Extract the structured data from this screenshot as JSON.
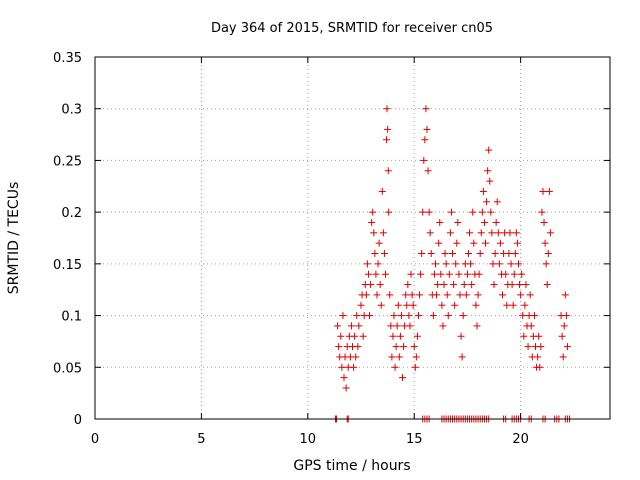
{
  "chart_data": {
    "type": "scatter",
    "title": "Day 364 of 2015, SRMTID for receiver cn05",
    "xlabel": "GPS time / hours",
    "ylabel": "SRMTID / TECUs",
    "xlim": [
      0,
      24.2
    ],
    "ylim": [
      0,
      0.35
    ],
    "xticks": [
      0,
      5,
      10,
      15,
      20
    ],
    "yticks": [
      0,
      0.05,
      0.1,
      0.15,
      0.2,
      0.25,
      0.3,
      0.35
    ],
    "grid": true,
    "marker": "+",
    "marker_color": "#e00000",
    "series": [
      {
        "name": "SRMTID",
        "points": [
          [
            11.4,
            0.09
          ],
          [
            11.45,
            0.07
          ],
          [
            11.5,
            0.06
          ],
          [
            11.55,
            0.08
          ],
          [
            11.6,
            0.05
          ],
          [
            11.65,
            0.1
          ],
          [
            11.7,
            0.04
          ],
          [
            11.75,
            0.06
          ],
          [
            11.8,
            0.03
          ],
          [
            11.85,
            0.07
          ],
          [
            11.9,
            0.05
          ],
          [
            11.95,
            0.08
          ],
          [
            12.0,
            0.06
          ],
          [
            12.05,
            0.09
          ],
          [
            12.1,
            0.07
          ],
          [
            12.15,
            0.05
          ],
          [
            12.2,
            0.08
          ],
          [
            12.25,
            0.06
          ],
          [
            12.3,
            0.1
          ],
          [
            12.35,
            0.07
          ],
          [
            12.4,
            0.09
          ],
          [
            12.5,
            0.11
          ],
          [
            12.55,
            0.12
          ],
          [
            12.6,
            0.08
          ],
          [
            12.65,
            0.1
          ],
          [
            12.7,
            0.13
          ],
          [
            12.75,
            0.12
          ],
          [
            12.8,
            0.15
          ],
          [
            12.85,
            0.14
          ],
          [
            12.9,
            0.1
          ],
          [
            12.95,
            0.13
          ],
          [
            13.0,
            0.19
          ],
          [
            13.05,
            0.2
          ],
          [
            13.1,
            0.18
          ],
          [
            13.15,
            0.16
          ],
          [
            13.2,
            0.14
          ],
          [
            13.25,
            0.12
          ],
          [
            13.3,
            0.15
          ],
          [
            13.35,
            0.17
          ],
          [
            13.4,
            0.13
          ],
          [
            13.45,
            0.11
          ],
          [
            13.5,
            0.22
          ],
          [
            13.55,
            0.18
          ],
          [
            13.6,
            0.16
          ],
          [
            13.65,
            0.14
          ],
          [
            13.7,
            0.27
          ],
          [
            13.72,
            0.3
          ],
          [
            13.75,
            0.28
          ],
          [
            13.78,
            0.24
          ],
          [
            13.8,
            0.2
          ],
          [
            13.85,
            0.12
          ],
          [
            13.9,
            0.09
          ],
          [
            13.95,
            0.06
          ],
          [
            14.0,
            0.08
          ],
          [
            14.05,
            0.1
          ],
          [
            14.1,
            0.05
          ],
          [
            14.15,
            0.07
          ],
          [
            14.2,
            0.09
          ],
          [
            14.25,
            0.11
          ],
          [
            14.3,
            0.06
          ],
          [
            14.35,
            0.08
          ],
          [
            14.4,
            0.1
          ],
          [
            14.45,
            0.04
          ],
          [
            14.5,
            0.07
          ],
          [
            14.55,
            0.09
          ],
          [
            14.6,
            0.12
          ],
          [
            14.65,
            0.11
          ],
          [
            14.7,
            0.13
          ],
          [
            14.75,
            0.1
          ],
          [
            14.8,
            0.09
          ],
          [
            14.85,
            0.14
          ],
          [
            14.9,
            0.12
          ],
          [
            14.95,
            0.11
          ],
          [
            15.0,
            0.07
          ],
          [
            15.05,
            0.05
          ],
          [
            15.1,
            0.06
          ],
          [
            15.15,
            0.08
          ],
          [
            15.2,
            0.1
          ],
          [
            15.25,
            0.12
          ],
          [
            15.3,
            0.14
          ],
          [
            15.35,
            0.16
          ],
          [
            15.4,
            0.2
          ],
          [
            15.45,
            0.25
          ],
          [
            15.5,
            0.27
          ],
          [
            15.55,
            0.3
          ],
          [
            15.6,
            0.28
          ],
          [
            15.65,
            0.24
          ],
          [
            15.7,
            0.2
          ],
          [
            15.75,
            0.18
          ],
          [
            15.8,
            0.16
          ],
          [
            15.85,
            0.12
          ],
          [
            15.9,
            0.1
          ],
          [
            15.95,
            0.14
          ],
          [
            16.0,
            0.15
          ],
          [
            16.05,
            0.12
          ],
          [
            16.1,
            0.13
          ],
          [
            16.15,
            0.17
          ],
          [
            16.2,
            0.19
          ],
          [
            16.25,
            0.14
          ],
          [
            16.3,
            0.11
          ],
          [
            16.35,
            0.09
          ],
          [
            16.4,
            0.13
          ],
          [
            16.45,
            0.16
          ],
          [
            16.5,
            0.15
          ],
          [
            16.55,
            0.12
          ],
          [
            16.6,
            0.1
          ],
          [
            16.65,
            0.14
          ],
          [
            16.7,
            0.18
          ],
          [
            16.75,
            0.2
          ],
          [
            16.8,
            0.16
          ],
          [
            16.85,
            0.13
          ],
          [
            16.9,
            0.11
          ],
          [
            16.95,
            0.15
          ],
          [
            17.0,
            0.17
          ],
          [
            17.05,
            0.19
          ],
          [
            17.1,
            0.14
          ],
          [
            17.15,
            0.12
          ],
          [
            17.2,
            0.08
          ],
          [
            17.25,
            0.06
          ],
          [
            17.3,
            0.1
          ],
          [
            17.35,
            0.13
          ],
          [
            17.4,
            0.15
          ],
          [
            17.45,
            0.12
          ],
          [
            17.5,
            0.14
          ],
          [
            17.55,
            0.16
          ],
          [
            17.6,
            0.18
          ],
          [
            17.65,
            0.15
          ],
          [
            17.7,
            0.13
          ],
          [
            17.75,
            0.2
          ],
          [
            17.8,
            0.17
          ],
          [
            17.85,
            0.14
          ],
          [
            17.9,
            0.11
          ],
          [
            17.95,
            0.09
          ],
          [
            18.0,
            0.12
          ],
          [
            18.05,
            0.14
          ],
          [
            18.1,
            0.16
          ],
          [
            18.15,
            0.18
          ],
          [
            18.2,
            0.2
          ],
          [
            18.25,
            0.22
          ],
          [
            18.3,
            0.19
          ],
          [
            18.35,
            0.17
          ],
          [
            18.4,
            0.21
          ],
          [
            18.45,
            0.24
          ],
          [
            18.5,
            0.26
          ],
          [
            18.55,
            0.23
          ],
          [
            18.6,
            0.2
          ],
          [
            18.65,
            0.18
          ],
          [
            18.7,
            0.15
          ],
          [
            18.75,
            0.13
          ],
          [
            18.8,
            0.16
          ],
          [
            18.85,
            0.19
          ],
          [
            18.9,
            0.21
          ],
          [
            18.95,
            0.18
          ],
          [
            19.0,
            0.15
          ],
          [
            19.05,
            0.17
          ],
          [
            19.1,
            0.14
          ],
          [
            19.15,
            0.12
          ],
          [
            19.2,
            0.16
          ],
          [
            19.25,
            0.18
          ],
          [
            19.3,
            0.14
          ],
          [
            19.35,
            0.11
          ],
          [
            19.4,
            0.13
          ],
          [
            19.45,
            0.16
          ],
          [
            19.5,
            0.18
          ],
          [
            19.55,
            0.15
          ],
          [
            19.6,
            0.13
          ],
          [
            19.65,
            0.11
          ],
          [
            19.7,
            0.14
          ],
          [
            19.75,
            0.16
          ],
          [
            19.8,
            0.18
          ],
          [
            19.85,
            0.17
          ],
          [
            19.9,
            0.15
          ],
          [
            19.95,
            0.13
          ],
          [
            20.0,
            0.12
          ],
          [
            20.05,
            0.14
          ],
          [
            20.1,
            0.1
          ],
          [
            20.15,
            0.08
          ],
          [
            20.2,
            0.11
          ],
          [
            20.25,
            0.13
          ],
          [
            20.3,
            0.09
          ],
          [
            20.35,
            0.07
          ],
          [
            20.4,
            0.1
          ],
          [
            20.45,
            0.12
          ],
          [
            20.5,
            0.09
          ],
          [
            20.55,
            0.06
          ],
          [
            20.6,
            0.08
          ],
          [
            20.65,
            0.1
          ],
          [
            20.7,
            0.07
          ],
          [
            20.75,
            0.05
          ],
          [
            20.8,
            0.06
          ],
          [
            20.85,
            0.08
          ],
          [
            20.9,
            0.05
          ],
          [
            20.95,
            0.07
          ],
          [
            21.0,
            0.2
          ],
          [
            21.05,
            0.22
          ],
          [
            21.1,
            0.19
          ],
          [
            21.15,
            0.17
          ],
          [
            21.2,
            0.15
          ],
          [
            21.25,
            0.13
          ],
          [
            21.3,
            0.16
          ],
          [
            21.35,
            0.22
          ],
          [
            21.4,
            0.18
          ],
          [
            21.9,
            0.1
          ],
          [
            21.95,
            0.08
          ],
          [
            22.0,
            0.06
          ],
          [
            22.05,
            0.09
          ],
          [
            22.1,
            0.12
          ],
          [
            22.15,
            0.1
          ],
          [
            22.2,
            0.07
          ],
          [
            11.3,
            0.0
          ],
          [
            11.35,
            0.0
          ],
          [
            11.85,
            0.0
          ],
          [
            11.9,
            0.0
          ],
          [
            15.4,
            0.0
          ],
          [
            15.5,
            0.0
          ],
          [
            15.6,
            0.0
          ],
          [
            15.7,
            0.0
          ],
          [
            16.3,
            0.0
          ],
          [
            16.4,
            0.0
          ],
          [
            16.5,
            0.0
          ],
          [
            16.6,
            0.0
          ],
          [
            16.7,
            0.0
          ],
          [
            16.8,
            0.0
          ],
          [
            16.9,
            0.0
          ],
          [
            17.0,
            0.0
          ],
          [
            17.1,
            0.0
          ],
          [
            17.2,
            0.0
          ],
          [
            17.3,
            0.0
          ],
          [
            17.4,
            0.0
          ],
          [
            17.5,
            0.0
          ],
          [
            17.6,
            0.0
          ],
          [
            17.7,
            0.0
          ],
          [
            17.8,
            0.0
          ],
          [
            17.9,
            0.0
          ],
          [
            18.0,
            0.0
          ],
          [
            18.1,
            0.0
          ],
          [
            18.2,
            0.0
          ],
          [
            18.3,
            0.0
          ],
          [
            18.4,
            0.0
          ],
          [
            18.5,
            0.0
          ],
          [
            19.2,
            0.0
          ],
          [
            19.3,
            0.0
          ],
          [
            19.6,
            0.0
          ],
          [
            19.7,
            0.0
          ],
          [
            19.8,
            0.0
          ],
          [
            19.9,
            0.0
          ],
          [
            20.0,
            0.0
          ],
          [
            20.4,
            0.0
          ],
          [
            20.5,
            0.0
          ],
          [
            21.05,
            0.0
          ],
          [
            21.15,
            0.0
          ],
          [
            21.6,
            0.0
          ],
          [
            21.7,
            0.0
          ],
          [
            21.8,
            0.0
          ],
          [
            22.1,
            0.0
          ],
          [
            22.2,
            0.0
          ],
          [
            22.3,
            0.0
          ]
        ]
      }
    ]
  }
}
